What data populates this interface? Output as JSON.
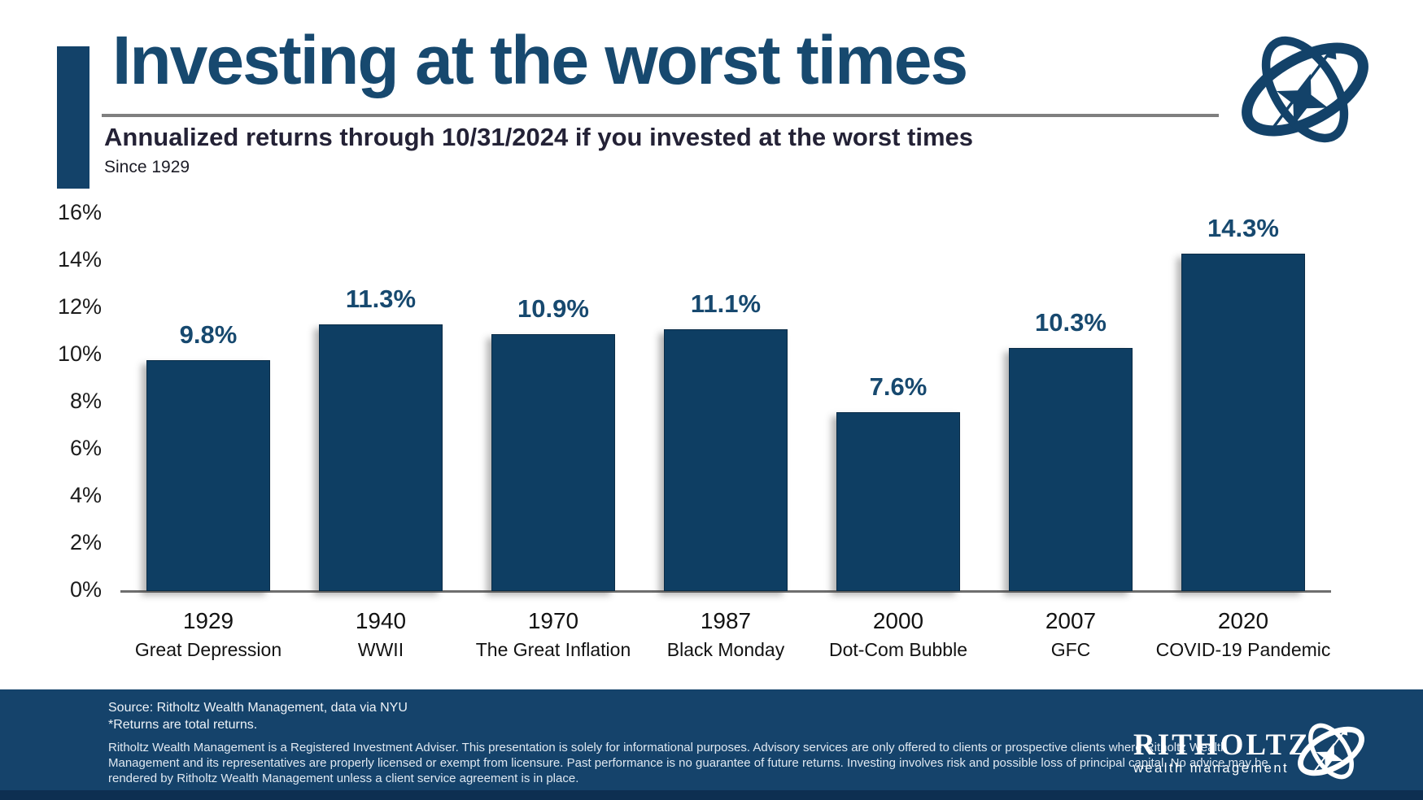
{
  "page": {
    "title": "Investing at the worst times",
    "subtitle": "Annualized returns through 10/31/2024 if you invested at the worst times",
    "subnote": "Since 1929"
  },
  "colors": {
    "bar": "#0e3e63",
    "title_navy": "#17496f",
    "footer_bg": "#15436b",
    "footer_stripe": "#0d2f51",
    "divider_gray": "#7f7f7f"
  },
  "chart_data": {
    "type": "bar",
    "title": "Annualized returns through 10/31/2024 if you invested at the worst times",
    "categories": [
      "1929",
      "1940",
      "1970",
      "1987",
      "2000",
      "2007",
      "2020"
    ],
    "category_sublabels": [
      "Great Depression",
      "WWII",
      "The Great Inflation",
      "Black Monday",
      "Dot-Com Bubble",
      "GFC",
      "COVID-19 Pandemic"
    ],
    "values": [
      9.8,
      11.3,
      10.9,
      11.1,
      7.6,
      10.3,
      14.3
    ],
    "value_labels": [
      "9.8%",
      "11.3%",
      "10.9%",
      "11.1%",
      "7.6%",
      "10.3%",
      "14.3%"
    ],
    "xlabel": "",
    "ylabel": "",
    "ylim": [
      0,
      16
    ],
    "ytick_step": 2,
    "ytick_labels_top_to_bottom": [
      "16%",
      "14%",
      "12%",
      "10%",
      "8%",
      "6%",
      "4%",
      "2%",
      "0%"
    ],
    "grid": false,
    "legend": "none",
    "bar_color": "#0e3e63",
    "value_label_color": "#17496f"
  },
  "footer": {
    "source_line1": "Source: Ritholtz Wealth Management, data via NYU",
    "source_line2": "*Returns are total returns.",
    "disclaimer": "Ritholtz Wealth Management is a Registered Investment Adviser. This presentation is solely for informational purposes. Advisory services are only offered to clients or prospective clients where Ritholtz Wealth Management and its representatives are properly licensed or exempt from licensure. Past performance is no guarantee of future returns. Investing involves risk and possible loss of principal capital. No advice may be rendered by Ritholtz Wealth Management unless a client service agreement is in place.",
    "brand_name": "RITHOLTZ",
    "brand_sub": "wealth management"
  }
}
